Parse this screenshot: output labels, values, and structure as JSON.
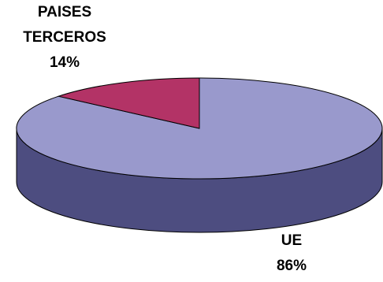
{
  "chart_data": {
    "type": "pie",
    "style": "3d",
    "slices": [
      {
        "label_lines": [
          "UE"
        ],
        "percent_label": "86%",
        "value": 86,
        "color": "#9999cc",
        "side_color": "#4d4d80"
      },
      {
        "label_lines": [
          "PAISES",
          "TERCEROS"
        ],
        "percent_label": "14%",
        "value": 14,
        "color": "#b33366",
        "side_color": "#6b1f3d"
      }
    ],
    "legend": "none",
    "data_labels": "outside"
  }
}
